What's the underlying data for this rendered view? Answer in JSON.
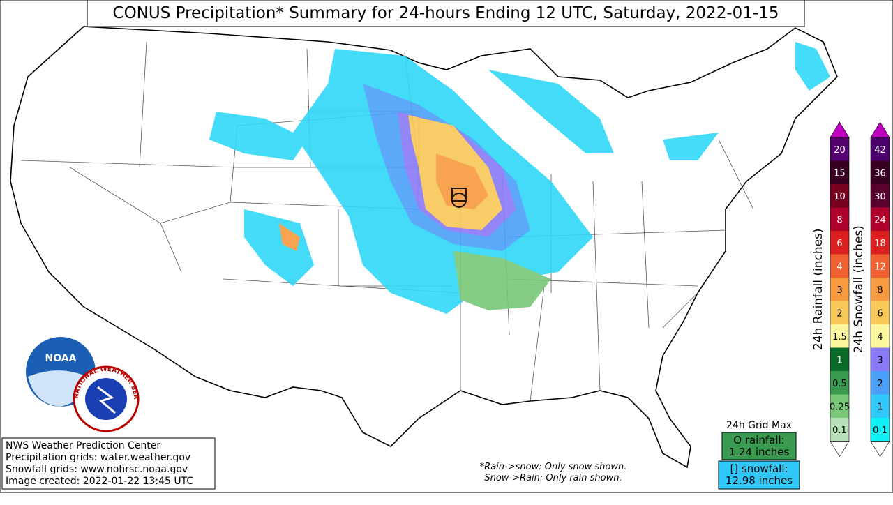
{
  "header": {
    "title": "CONUS Precipitation* Summary for 24-hours Ending 12 UTC, Saturday, 2022-01-15"
  },
  "logos": {
    "noaa": "NOAA",
    "nws": "NATIONAL WEATHER SERVICE"
  },
  "info": [
    "NWS Weather Prediction Center",
    "Precipitation grids: water.weather.gov",
    "Snowfall grids: www.nohrsc.noaa.gov",
    "Image created: 2022-01-22 13:45 UTC"
  ],
  "note": [
    "*Rain->snow: Only snow shown.",
    "Snow->Rain: Only rain shown."
  ],
  "grid_max": {
    "title": "24h Grid Max",
    "rain": [
      "O rainfall:",
      "1.24 inches"
    ],
    "snow": [
      "[] snowfall:",
      "12.98 inches"
    ]
  },
  "rain_scale": {
    "title": "24h Rainfall (inches)",
    "labels": [
      "20",
      "15",
      "10",
      "8",
      "6",
      "4",
      "3",
      "2",
      "1.5",
      "1",
      "0.5",
      "0.25",
      "0.1"
    ],
    "colors": [
      "#54006e",
      "#3a0024",
      "#7a0022",
      "#b0002c",
      "#dc2020",
      "#f06030",
      "#f89a40",
      "#f8c858",
      "#fcf8a0",
      "#0a6a2a",
      "#3a9a50",
      "#78c878",
      "#b8e0b8"
    ],
    "top": "#c000c0",
    "bottom": "#ffffff"
  },
  "snow_scale": {
    "title": "24h Snowfall (inches)",
    "labels": [
      "42",
      "36",
      "30",
      "24",
      "18",
      "12",
      "8",
      "6",
      "4",
      "3",
      "2",
      "1",
      "0.1"
    ],
    "colors": [
      "#4c006e",
      "#3a0024",
      "#5c0030",
      "#b0002c",
      "#dc2020",
      "#f06030",
      "#f89a40",
      "#f8c858",
      "#fcf8a0",
      "#8a7af8",
      "#4aa0f8",
      "#30c8f8",
      "#10f0f8"
    ],
    "top": "#c000c0",
    "bottom": "#ffffff"
  }
}
